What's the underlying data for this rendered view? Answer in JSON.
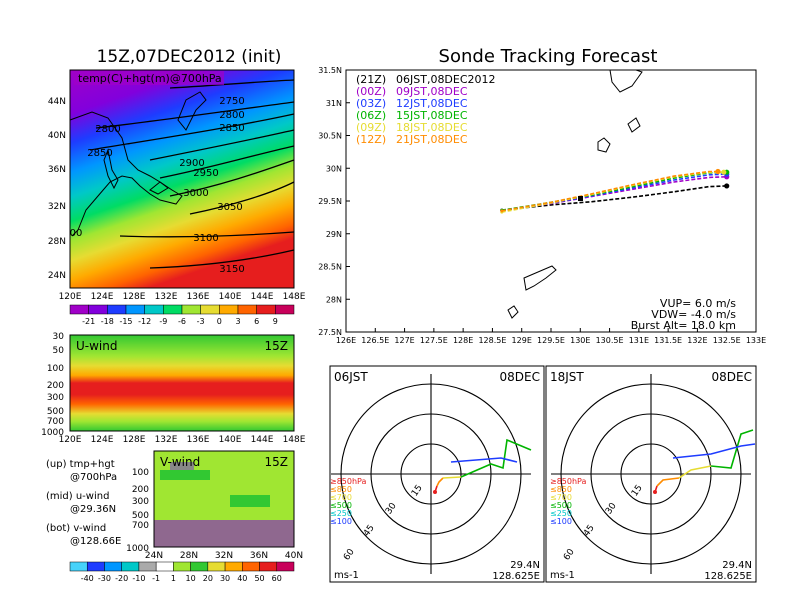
{
  "main_title": "15Z,07DEC2012 (init)",
  "right_title": "Sonde Tracking Forecast",
  "temp_panel": {
    "label": "temp(C)+hgt(m)@700hPa",
    "lat_ticks": [
      "44N",
      "40N",
      "36N",
      "32N",
      "28N",
      "24N"
    ],
    "lon_ticks": [
      "120E",
      "124E",
      "128E",
      "132E",
      "136E",
      "140E",
      "144E",
      "148E"
    ],
    "contours": [
      "2750",
      "2800",
      "2850",
      "2800",
      "2850",
      "2900",
      "2950",
      "3000",
      "3050",
      "3100",
      "3150",
      "00"
    ],
    "colorbar": [
      "-21",
      "-18",
      "-15",
      "-12",
      "-9",
      "-6",
      "-3",
      "0",
      "3",
      "6",
      "9"
    ],
    "colorbar_colors": [
      "#a000c8",
      "#8200dc",
      "#1e3cff",
      "#0096ff",
      "#00c8c8",
      "#00dc64",
      "#a0e632",
      "#e6dc32",
      "#ffaa00",
      "#ff6400",
      "#e61e1e",
      "#c8005a"
    ]
  },
  "uwind_panel": {
    "label": "U-wind",
    "time": "15Z",
    "p_ticks": [
      "30",
      "50",
      "100",
      "200",
      "300",
      "500",
      "700",
      "1000"
    ],
    "lon_ticks": [
      "120E",
      "124E",
      "128E",
      "132E",
      "136E",
      "140E",
      "144E",
      "148E"
    ]
  },
  "vwind_panel": {
    "label": "V-wind",
    "time": "15Z",
    "p_ticks": [
      "100",
      "200",
      "300",
      "500",
      "700",
      "1000"
    ],
    "lat_ticks": [
      "24N",
      "28N",
      "32N",
      "36N",
      "40N"
    ]
  },
  "wind_colorbar": [
    "-40",
    "-30",
    "-20",
    "-10",
    "-1",
    "1",
    "10",
    "20",
    "30",
    "40",
    "50",
    "60"
  ],
  "wind_colorbar_colors": [
    "#46d2fa",
    "#1e3cff",
    "#0096ff",
    "#00c8c8",
    "#aaaaaa",
    "#ffffff",
    "#a0e632",
    "#32c832",
    "#e6dc32",
    "#ffaa00",
    "#ff6400",
    "#e61e1e",
    "#c8005a"
  ],
  "notes": [
    {
      "a": "(up) tmp+hgt",
      "b": "@700hPa"
    },
    {
      "a": "(mid) u-wind",
      "b": "@29.36N"
    },
    {
      "a": "(bot) v-wind",
      "b": "@128.66E"
    }
  ],
  "tracking": {
    "legend": [
      {
        "code": "(21Z)",
        "text": "06JST,08DEC2012",
        "color": "#000000"
      },
      {
        "code": "(00Z)",
        "text": "09JST,08DEC",
        "color": "#a000c8"
      },
      {
        "code": "(03Z)",
        "text": "12JST,08DEC",
        "color": "#1e3cff"
      },
      {
        "code": "(06Z)",
        "text": "15JST,08DEC",
        "color": "#00b400"
      },
      {
        "code": "(09Z)",
        "text": "18JST,08DEC",
        "color": "#e6dc32"
      },
      {
        "code": "(12Z)",
        "text": "21JST,08DEC",
        "color": "#ff8c00"
      }
    ],
    "lat_ticks": [
      "31.5N",
      "31N",
      "30.5N",
      "30N",
      "29.5N",
      "29N",
      "28.5N",
      "28N",
      "27.5N"
    ],
    "lon_ticks": [
      "126E",
      "126.5E",
      "127E",
      "127.5E",
      "128E",
      "128.5E",
      "129E",
      "129.5E",
      "130E",
      "130.5E",
      "131E",
      "131.5E",
      "132E",
      "132.5E",
      "133E"
    ],
    "params": [
      "VUP=  6.0  m/s",
      "VDW= -4.0  m/s",
      "Burst Alt=  18.0  km"
    ]
  },
  "chart_data": [
    {
      "type": "line",
      "title": "Sonde Tracking Forecast",
      "xlabel": "",
      "ylabel": "",
      "xlim": [
        126,
        133
      ],
      "ylim": [
        27.5,
        31.5
      ],
      "series": [
        {
          "name": "(21Z) 06JST,08DEC2012",
          "color": "#000000",
          "points": [
            [
              128.66,
              29.36
            ],
            [
              129.5,
              29.44
            ],
            [
              130.2,
              29.49
            ],
            [
              130.9,
              29.56
            ],
            [
              131.6,
              29.64
            ],
            [
              132.2,
              29.72
            ],
            [
              132.5,
              29.73
            ]
          ]
        },
        {
          "name": "(00Z) 09JST,08DEC",
          "color": "#a000c8",
          "points": [
            [
              128.66,
              29.36
            ],
            [
              129.5,
              29.46
            ],
            [
              130.2,
              29.57
            ],
            [
              130.9,
              29.68
            ],
            [
              131.6,
              29.79
            ],
            [
              132.2,
              29.86
            ],
            [
              132.5,
              29.87
            ]
          ]
        },
        {
          "name": "(03Z) 12JST,08DEC",
          "color": "#1e3cff",
          "points": [
            [
              128.66,
              29.36
            ],
            [
              129.5,
              29.47
            ],
            [
              130.2,
              29.58
            ],
            [
              130.9,
              29.7
            ],
            [
              131.6,
              29.82
            ],
            [
              132.2,
              29.9
            ],
            [
              132.5,
              29.91
            ]
          ]
        },
        {
          "name": "(06Z) 15JST,08DEC",
          "color": "#00b400",
          "points": [
            [
              128.66,
              29.36
            ],
            [
              129.5,
              29.48
            ],
            [
              130.2,
              29.59
            ],
            [
              130.9,
              29.72
            ],
            [
              131.6,
              29.85
            ],
            [
              132.2,
              29.93
            ],
            [
              132.5,
              29.94
            ]
          ]
        },
        {
          "name": "(09Z) 18JST,08DEC",
          "color": "#e6dc32",
          "points": [
            [
              128.66,
              29.33
            ],
            [
              129.5,
              29.47
            ],
            [
              130.2,
              29.6
            ],
            [
              130.9,
              29.74
            ],
            [
              131.6,
              29.87
            ],
            [
              132.2,
              29.94
            ],
            [
              132.45,
              29.94
            ]
          ]
        },
        {
          "name": "(12Z) 21JST,08DEC",
          "color": "#ff8c00",
          "points": [
            [
              128.66,
              29.35
            ],
            [
              129.5,
              29.48
            ],
            [
              130.2,
              29.61
            ],
            [
              130.9,
              29.75
            ],
            [
              131.6,
              29.88
            ],
            [
              132.2,
              29.95
            ],
            [
              132.35,
              29.95
            ]
          ]
        }
      ]
    },
    {
      "type": "line",
      "title": "06JST 08DEC",
      "level_legend": [
        "≥850hPa",
        "≤850",
        "≤700",
        "≤500",
        "≤250",
        "≤100"
      ],
      "level_colors": [
        "#e61e1e",
        "#ff8c00",
        "#e6dc32",
        "#00b400",
        "#00c8c8",
        "#1e3cff"
      ],
      "center_label": [
        "29.4N",
        "128.625E"
      ],
      "units": "ms-1",
      "ring_labels": [
        "15",
        "30",
        "45",
        "60"
      ]
    },
    {
      "type": "line",
      "title": "18JST 08DEC",
      "level_legend": [
        "≥850hPa",
        "≤850",
        "≤700",
        "≤500",
        "≤250",
        "≤100"
      ],
      "level_colors": [
        "#e61e1e",
        "#ff8c00",
        "#e6dc32",
        "#00b400",
        "#00c8c8",
        "#1e3cff"
      ],
      "center_label": [
        "29.4N",
        "128.625E"
      ],
      "units": "ms-1",
      "ring_labels": [
        "15",
        "30",
        "45",
        "60"
      ]
    }
  ],
  "hodo1": {
    "left": "06JST",
    "right": "08DEC",
    "lat": "29.4N",
    "lon": "128.625E",
    "units": "ms-1"
  },
  "hodo2": {
    "left": "18JST",
    "right": "08DEC",
    "lat": "29.4N",
    "lon": "128.625E",
    "units": "ms-1"
  }
}
